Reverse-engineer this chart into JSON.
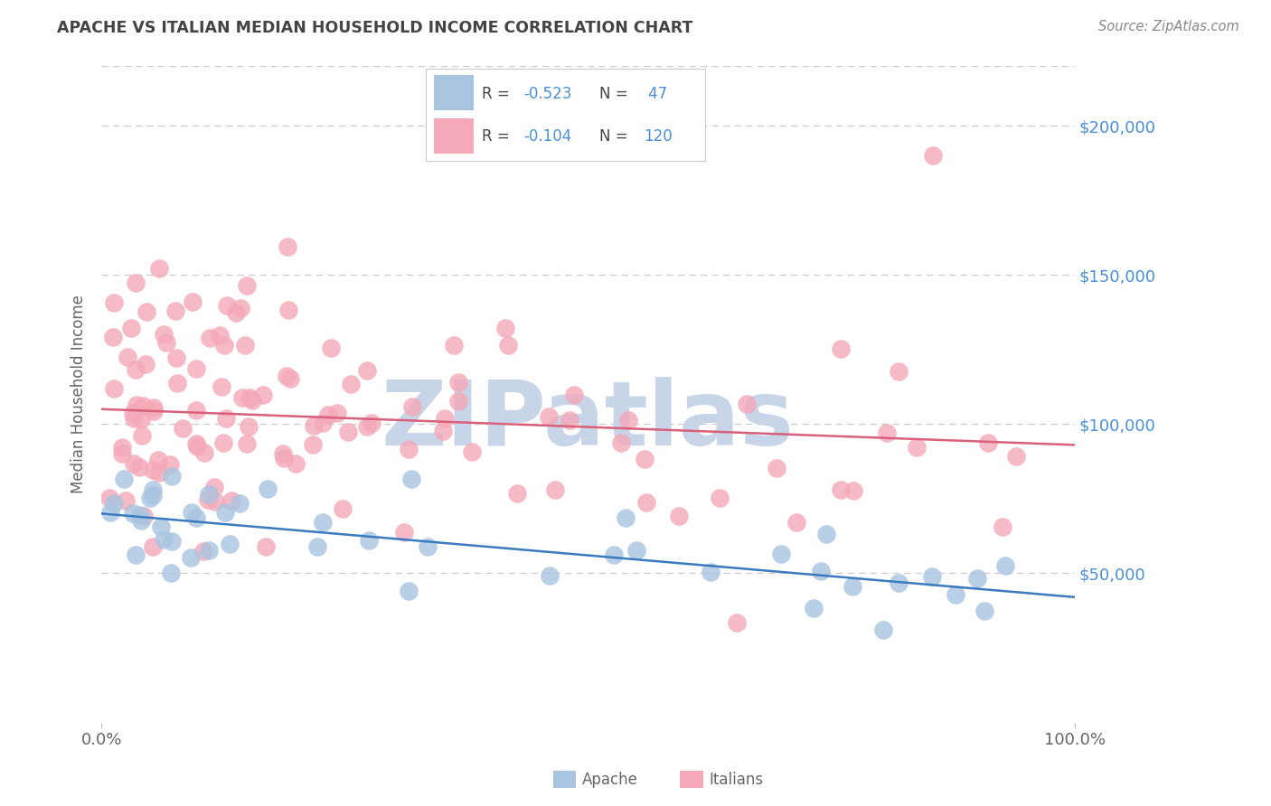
{
  "title": "APACHE VS ITALIAN MEDIAN HOUSEHOLD INCOME CORRELATION CHART",
  "source": "Source: ZipAtlas.com",
  "ylabel": "Median Household Income",
  "yticks": [
    0,
    50000,
    100000,
    150000,
    200000
  ],
  "xlim": [
    0.0,
    1.0
  ],
  "ylim": [
    0,
    220000
  ],
  "apache_color": "#a8c4e0",
  "italian_color": "#f4a8b8",
  "apache_line_color": "#3a7abf",
  "italian_line_color": "#d9607a",
  "apache_R": -0.523,
  "apache_N": 47,
  "italian_R": -0.104,
  "italian_N": 120,
  "background_color": "#ffffff",
  "grid_color": "#cccccc",
  "legend_label_apache": "Apache",
  "legend_label_italians": "Italians",
  "watermark": "ZIPatlas",
  "watermark_color": "#c8d4e8",
  "title_color": "#444444",
  "source_color": "#888888",
  "tick_label_color_blue": "#4a90d9",
  "axis_label_color": "#666666",
  "legend_text_color": "#444444",
  "ytick_label_color": "#4a90d9"
}
